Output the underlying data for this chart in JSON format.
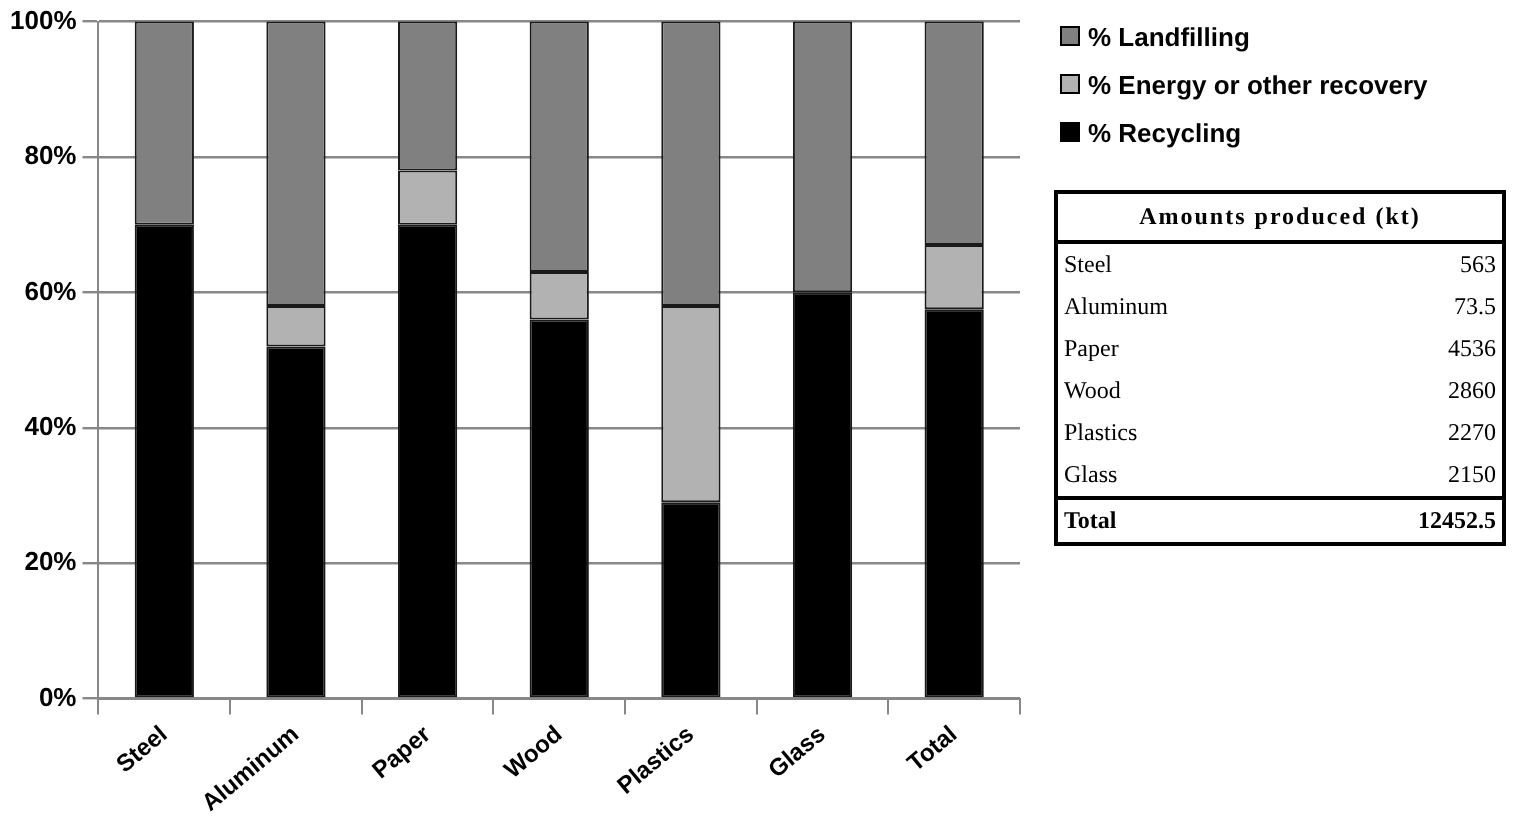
{
  "chart_data": [
    {
      "type": "bar",
      "stacked": true,
      "categories": [
        "Steel",
        "Aluminum",
        "Paper",
        "Wood",
        "Plastics",
        "Glass",
        "Total"
      ],
      "series": [
        {
          "name": "% Recycling",
          "color": "#000000",
          "values": [
            70,
            52,
            70,
            56,
            29,
            60,
            57.5
          ]
        },
        {
          "name": "% Energy or other recovery",
          "color": "#b2b2b2",
          "values": [
            0,
            6,
            8,
            7,
            29,
            0,
            9.5
          ]
        },
        {
          "name": "% Landfilling",
          "color": "#808080",
          "values": [
            30,
            42,
            22,
            37,
            42,
            40,
            33
          ]
        }
      ],
      "ylim": [
        0,
        100
      ],
      "yticks": [
        {
          "value": 0,
          "label": "0%"
        },
        {
          "value": 20,
          "label": "20%"
        },
        {
          "value": 40,
          "label": "40%"
        },
        {
          "value": 60,
          "label": "60%"
        },
        {
          "value": 80,
          "label": "80%"
        },
        {
          "value": 100,
          "label": "100%"
        }
      ],
      "grid": "y",
      "legend": "top right"
    },
    {
      "type": "other",
      "title": "Amounts produced (kt)",
      "data_labels": true,
      "categories": [
        "Steel",
        "Aluminum",
        "Paper",
        "Wood",
        "Plastics",
        "Glass",
        "Total"
      ],
      "values": [
        563,
        73.5,
        4536,
        2860,
        2270,
        2150,
        12452.5
      ]
    }
  ]
}
